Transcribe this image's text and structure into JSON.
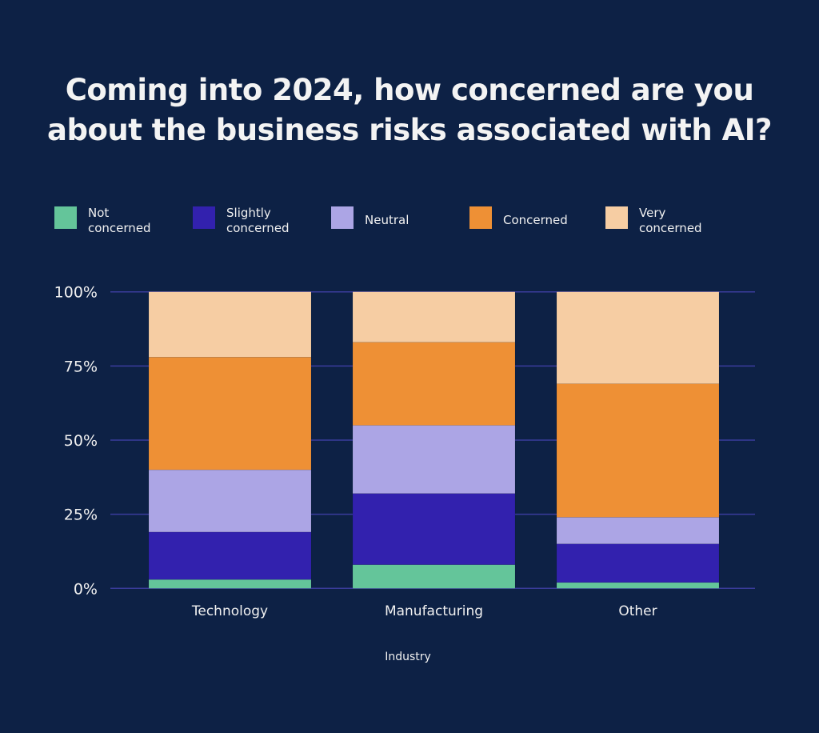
{
  "chart_data": {
    "type": "bar",
    "stacked": true,
    "title": "Coming into 2024, how concerned are you about the business risks associated with AI?",
    "title_lines": [
      "Coming into 2024, how concerned are you",
      "about the business risks associated with AI?"
    ],
    "xlabel": "Industry",
    "ylabel": "",
    "ylim": [
      0,
      100
    ],
    "yticks": [
      "0%",
      "25%",
      "50%",
      "75%",
      "100%"
    ],
    "grid": true,
    "legend_position": "top",
    "categories": [
      "Technology",
      "Manufacturing",
      "Other"
    ],
    "series": [
      {
        "name": "Not concerned",
        "label_lines": [
          "Not",
          "concerned"
        ],
        "color": "#64c59a",
        "values": [
          3,
          8,
          2
        ]
      },
      {
        "name": "Slightly concerned",
        "label_lines": [
          "Slightly",
          "concerned"
        ],
        "color": "#3221ae",
        "values": [
          16,
          24,
          13
        ]
      },
      {
        "name": "Neutral",
        "label_lines": [
          "Neutral"
        ],
        "color": "#aca5e5",
        "values": [
          21,
          23,
          9
        ]
      },
      {
        "name": "Concerned",
        "label_lines": [
          "Concerned"
        ],
        "color": "#ee9035",
        "values": [
          38,
          28,
          45
        ]
      },
      {
        "name": "Very concerned",
        "label_lines": [
          "Very",
          "concerned"
        ],
        "color": "#f6cda3",
        "values": [
          22,
          17,
          31
        ]
      }
    ]
  },
  "colors": {
    "background": "#0d2145",
    "grid": "#3a3c9c"
  }
}
